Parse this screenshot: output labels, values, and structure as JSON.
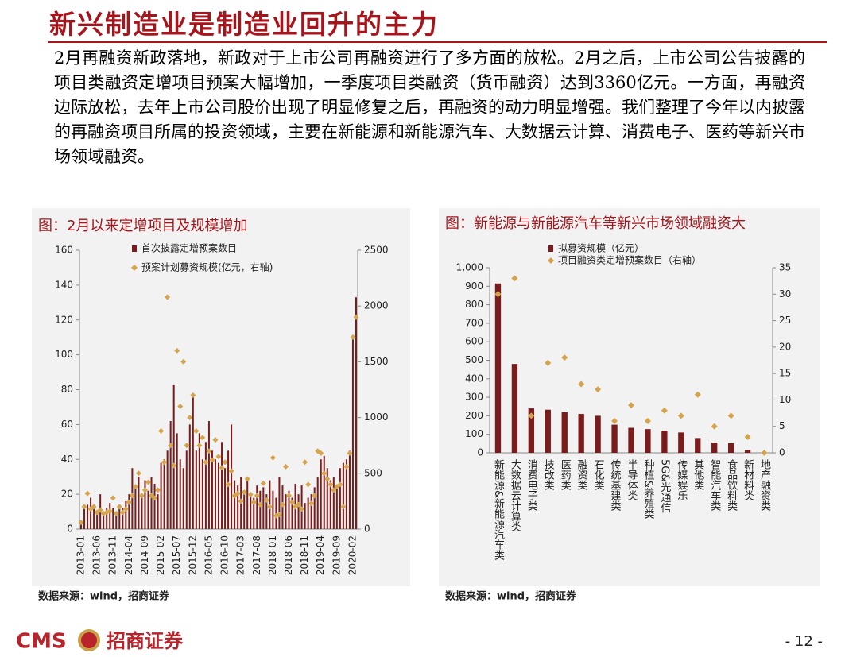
{
  "title": "新兴制造业是制造业回升的主力",
  "body": "2月再融资新政落地，新政对于上市公司再融资进行了多方面的放松。2月之后，上市公司公告披露的项目类融资定增项目预案大幅增加，一季度项目类融资（货币融资）达到3360亿元。一方面，再融资边际放松，去年上市公司股价出现了明显修复之后，再融资的动力明显增强。我们整理了今年以内披露的再融资项目所属的投资领域，主要在新能源和新能源汽车、大数据云计算、消费电子、医药等新兴市场领域融资。",
  "chart_data": [
    {
      "type": "bar",
      "title": "图：2月以来定增项目及规模增加",
      "source": "数据来源：wind，招商证券",
      "categories": [
        "2013-01",
        null,
        null,
        null,
        null,
        "2013-06",
        null,
        null,
        null,
        null,
        "2013-11",
        null,
        null,
        null,
        null,
        "2014-04",
        null,
        null,
        null,
        null,
        "2014-09",
        null,
        null,
        null,
        null,
        "2015-02",
        null,
        null,
        null,
        null,
        "2015-07",
        null,
        null,
        null,
        null,
        "2015-12",
        null,
        null,
        null,
        null,
        "2016-05",
        null,
        null,
        null,
        null,
        "2016-10",
        null,
        null,
        null,
        null,
        "2017-03",
        null,
        null,
        null,
        null,
        "2017-08",
        null,
        null,
        null,
        null,
        "2018-01",
        null,
        null,
        null,
        null,
        "2018-06",
        null,
        null,
        null,
        null,
        "2018-11",
        null,
        null,
        null,
        null,
        "2019-04",
        null,
        null,
        null,
        null,
        "2019-09",
        null,
        null,
        null,
        null,
        "2020-02",
        null
      ],
      "series": [
        {
          "name": "首次披露定增预案数目",
          "type": "bar",
          "color": "#7b1c1c",
          "values": [
            5,
            12,
            14,
            18,
            12,
            10,
            20,
            10,
            12,
            15,
            12,
            10,
            14,
            12,
            16,
            20,
            35,
            25,
            30,
            20,
            28,
            22,
            30,
            26,
            20,
            38,
            40,
            45,
            62,
            83,
            55,
            40,
            35,
            45,
            60,
            78,
            45,
            55,
            40,
            50,
            62,
            45,
            40,
            38,
            50,
            35,
            45,
            60,
            28,
            25,
            30,
            22,
            28,
            20,
            18,
            25,
            22,
            24,
            20,
            28,
            22,
            18,
            30,
            25,
            20,
            22,
            18,
            26,
            20,
            25,
            15,
            18,
            20,
            24,
            30,
            40,
            42,
            35,
            28,
            30,
            25,
            35,
            38,
            40,
            45,
            110,
            133
          ]
        },
        {
          "name": "预案计划募资规模(亿元，右轴)",
          "type": "scatter",
          "axis": "y2",
          "color": "#d4a44c",
          "values": [
            60,
            200,
            320,
            180,
            200,
            150,
            170,
            140,
            150,
            160,
            280,
            140,
            200,
            150,
            180,
            240,
            300,
            380,
            500,
            300,
            350,
            420,
            300,
            280,
            350,
            880,
            600,
            2080,
            750,
            570,
            1600,
            1100,
            1500,
            750,
            1000,
            1200,
            880,
            750,
            820,
            600,
            700,
            620,
            800,
            650,
            550,
            600,
            400,
            520,
            300,
            320,
            250,
            330,
            450,
            310,
            240,
            300,
            220,
            410,
            260,
            200,
            640,
            120,
            130,
            220,
            560,
            300,
            240,
            200,
            220,
            180,
            600,
            400,
            230,
            300,
            700,
            680,
            500,
            450,
            400,
            350,
            380,
            400,
            200,
            560,
            680,
            1720,
            1900
          ]
        }
      ],
      "ylim": [
        0,
        160
      ],
      "yticks": [
        0,
        20,
        40,
        60,
        80,
        100,
        120,
        140,
        160
      ],
      "y2lim": [
        0,
        2500
      ],
      "y2ticks": [
        0,
        500,
        1000,
        1500,
        2000,
        2500
      ]
    },
    {
      "type": "bar",
      "title": "图：新能源与新能源汽车等新兴市场领域融资大",
      "source": "数据来源：wind，招商证券",
      "categories": [
        "新能源&新能源汽车类",
        "大数据云计算类",
        "消费电子类",
        "技改类",
        "医药类",
        "融资类",
        "石化类",
        "传统基建类",
        "半导体类",
        "种植&养殖类",
        "5G&光通信",
        "传媒娱乐",
        "其他类",
        "智能汽车类",
        "食品饮料类",
        "新材料类",
        "地产融资类"
      ],
      "series": [
        {
          "name": "拟募资规模（亿元）",
          "type": "bar",
          "color": "#7b1c1c",
          "values": [
            915,
            480,
            240,
            233,
            220,
            210,
            200,
            152,
            135,
            128,
            120,
            110,
            80,
            55,
            52,
            15,
            0
          ]
        },
        {
          "name": "项目融资类定增预案数目（右轴）",
          "type": "scatter",
          "axis": "y2",
          "color": "#d4a44c",
          "values": [
            30,
            33,
            7,
            17,
            18,
            13,
            12,
            6,
            9,
            6,
            8,
            7,
            11,
            5,
            7,
            3,
            0
          ]
        }
      ],
      "ylim": [
        0,
        1000
      ],
      "yticks": [
        0,
        100,
        200,
        300,
        400,
        500,
        600,
        700,
        800,
        900,
        {
          "value": 1000,
          "label": "1,000"
        }
      ],
      "y2lim": [
        0,
        35
      ],
      "y2ticks": [
        0,
        5,
        10,
        15,
        20,
        25,
        30,
        35
      ]
    }
  ],
  "footer": {
    "logo": "CMS",
    "company": "招商证券",
    "page": "- 12 -"
  }
}
